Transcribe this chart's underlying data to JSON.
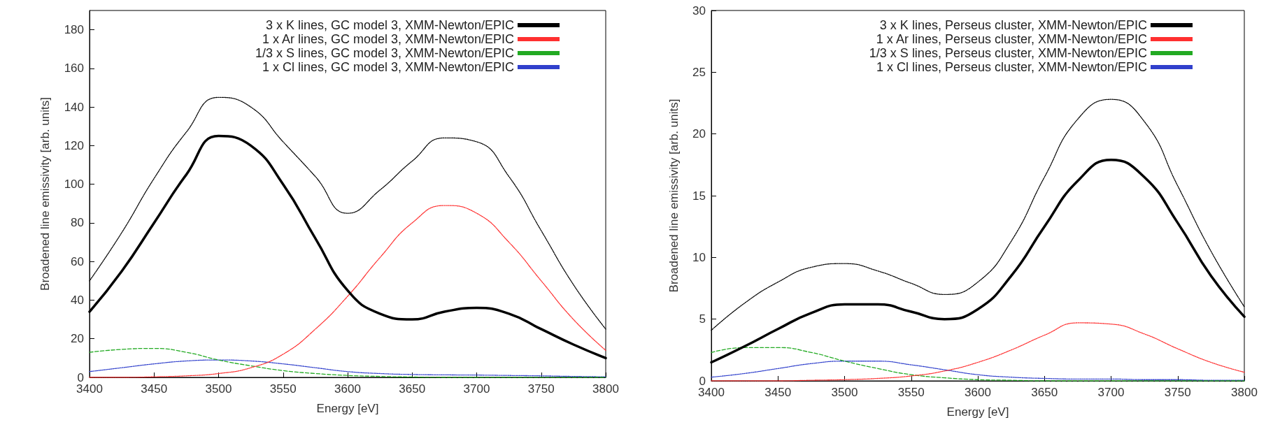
{
  "chart_data": [
    {
      "type": "line",
      "xlabel": "Energy [eV]",
      "ylabel": "Broadened line emissivity [arb. units]",
      "x": [
        3400,
        3425,
        3450,
        3475,
        3500,
        3525,
        3550,
        3575,
        3600,
        3625,
        3650,
        3675,
        3700,
        3725,
        3750,
        3775,
        3800
      ],
      "xlim": [
        3400,
        3800
      ],
      "xticks": [
        3400,
        3450,
        3500,
        3550,
        3600,
        3650,
        3700,
        3750,
        3800
      ],
      "ylim": [
        0,
        190
      ],
      "yticks": [
        0,
        20,
        40,
        60,
        80,
        100,
        120,
        140,
        160,
        180
      ],
      "grid": false,
      "legend": "top right",
      "marker": "none",
      "series": [
        {
          "name": "3 x K lines, GC model 3, XMM-Newton/EPIC",
          "color": "#000000",
          "line_style": "solid",
          "values": [
            34,
            55,
            80,
            105,
            125,
            120,
            100,
            72,
            45,
            33,
            30,
            34,
            36,
            33,
            25,
            17,
            10
          ]
        },
        {
          "name": "1 x Ar lines, GC model 3, XMM-Newton/EPIC",
          "color": "#ff3030",
          "line_style": "dotted",
          "values": [
            0,
            0,
            0.3,
            0.8,
            2,
            5,
            12,
            25,
            42,
            62,
            80,
            89,
            85,
            70,
            50,
            30,
            14
          ]
        },
        {
          "name": "1/3 x S lines, GC model 3, XMM-Newton/EPIC",
          "color": "#22aa22",
          "line_style": "dashed",
          "values": [
            13,
            14.5,
            15,
            13,
            9,
            6,
            3.5,
            2,
            1,
            0.5,
            0.2,
            0,
            0,
            0,
            0,
            0,
            0
          ]
        },
        {
          "name": "1 x Cl lines, GC model 3, XMM-Newton/EPIC",
          "color": "#3040cc",
          "line_style": "dotted",
          "values": [
            3,
            5,
            7,
            8.5,
            9,
            8.5,
            7,
            5,
            3,
            2,
            1.5,
            1.3,
            1.2,
            1,
            0.8,
            0.5,
            0.3
          ]
        },
        {
          "color": "#000000",
          "line_style": "dotted",
          "values": [
            50,
            75,
            103,
            127,
            145,
            140,
            122,
            104,
            85,
            97,
            112,
            124,
            122,
            104,
            76,
            48,
            25
          ]
        }
      ]
    },
    {
      "type": "line",
      "xlabel": "Energy [eV]",
      "ylabel": "Broadened line emissivity [arb. units]",
      "x": [
        3400,
        3425,
        3450,
        3475,
        3500,
        3525,
        3550,
        3575,
        3600,
        3625,
        3650,
        3675,
        3700,
        3725,
        3750,
        3775,
        3800
      ],
      "xlim": [
        3400,
        3800
      ],
      "xticks": [
        3400,
        3450,
        3500,
        3550,
        3600,
        3650,
        3700,
        3750,
        3800
      ],
      "ylim": [
        0,
        30
      ],
      "yticks": [
        0,
        5,
        10,
        15,
        20,
        25,
        30
      ],
      "grid": false,
      "legend": "top right",
      "marker": "none",
      "series": [
        {
          "name": "3 x K lines, Perseus cluster, XMM-Newton/EPIC",
          "color": "#000000",
          "line_style": "solid",
          "values": [
            1.5,
            2.8,
            4.2,
            5.5,
            6.2,
            6.2,
            5.6,
            5.0,
            5.8,
            8.5,
            12.5,
            16.2,
            17.9,
            16.5,
            12.8,
            8.5,
            5.2
          ]
        },
        {
          "name": "1 x Ar lines, Perseus cluster, XMM-Newton/EPIC",
          "color": "#ff3030",
          "line_style": "dotted",
          "values": [
            0,
            0,
            0,
            0.05,
            0.1,
            0.2,
            0.4,
            0.8,
            1.5,
            2.5,
            3.7,
            4.7,
            4.6,
            3.8,
            2.6,
            1.5,
            0.7
          ]
        },
        {
          "name": "1/3 x S lines, Perseus cluster, XMM-Newton/EPIC",
          "color": "#22aa22",
          "line_style": "dashed",
          "values": [
            2.3,
            2.7,
            2.7,
            2.3,
            1.6,
            1.0,
            0.5,
            0.25,
            0.1,
            0.05,
            0,
            0,
            0,
            0,
            0,
            0,
            0
          ]
        },
        {
          "name": "1 x Cl lines, Perseus cluster, XMM-Newton/EPIC",
          "color": "#3040cc",
          "line_style": "dotted",
          "values": [
            0.3,
            0.6,
            1.0,
            1.4,
            1.6,
            1.6,
            1.3,
            0.9,
            0.5,
            0.3,
            0.2,
            0.15,
            0.15,
            0.1,
            0.1,
            0.05,
            0.05
          ]
        },
        {
          "color": "#000000",
          "line_style": "dotted",
          "values": [
            4.1,
            6.3,
            8.0,
            9.2,
            9.5,
            8.9,
            7.9,
            7.0,
            8.0,
            11.3,
            16.5,
            21.2,
            22.8,
            21.0,
            15.8,
            10.5,
            6.0
          ]
        }
      ]
    }
  ]
}
